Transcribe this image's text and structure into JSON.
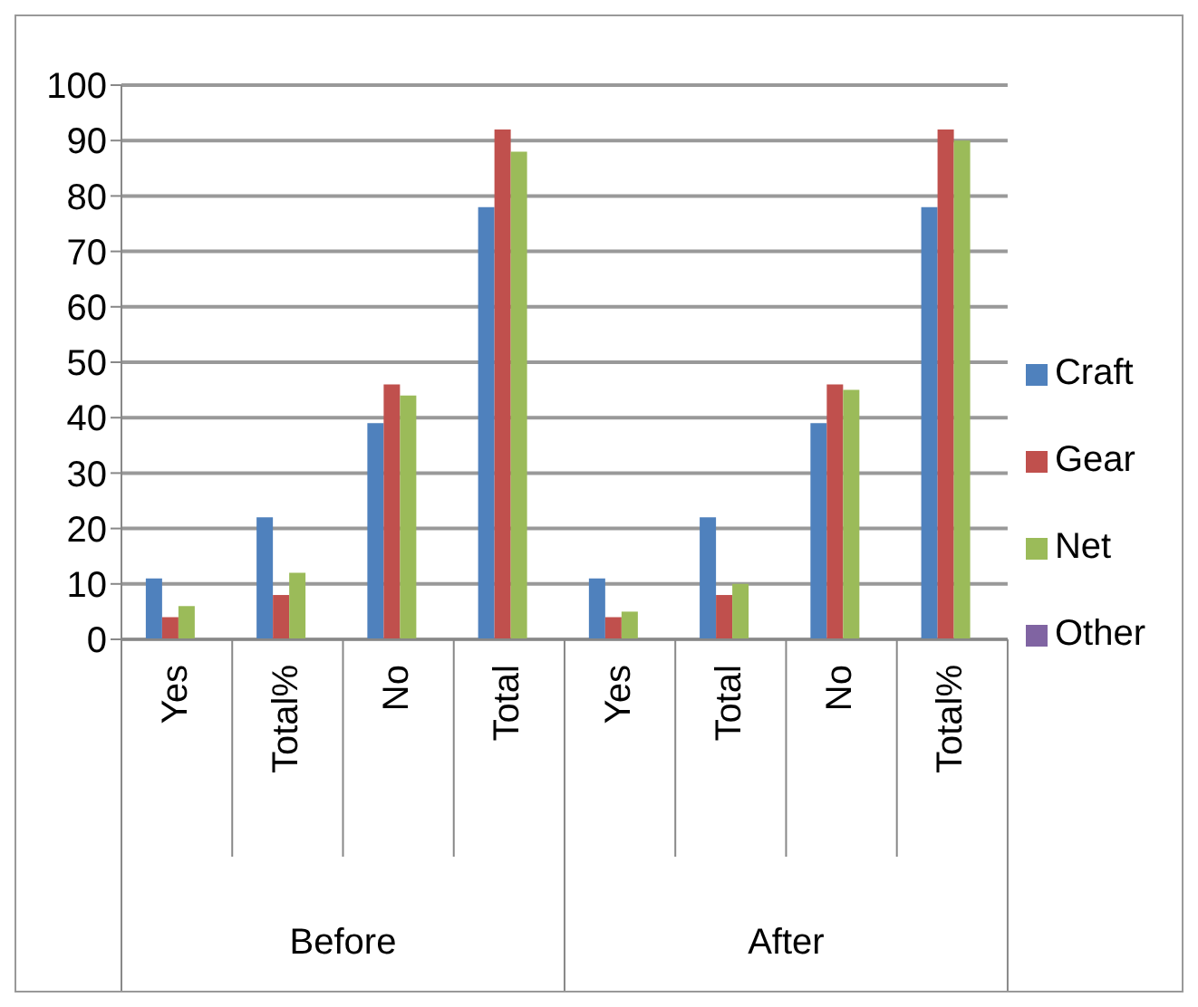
{
  "chart_data": {
    "type": "bar",
    "categories": [
      "Yes",
      "Total%",
      "No",
      "Total",
      "Yes",
      "Total",
      "No",
      "Total%"
    ],
    "annotations": [
      "Before",
      "After"
    ],
    "series": [
      {
        "name": "Craft",
        "color": "#4f81bd",
        "values": [
          11,
          22,
          39,
          78,
          11,
          22,
          39,
          78
        ]
      },
      {
        "name": "Gear",
        "color": "#c0504d",
        "values": [
          4,
          8,
          46,
          92,
          4,
          8,
          46,
          92
        ]
      },
      {
        "name": "Net",
        "color": "#9bbb59",
        "values": [
          6,
          12,
          44,
          88,
          5,
          10,
          45,
          90
        ]
      },
      {
        "name": "Other",
        "color": "#8064a2",
        "values": [
          null,
          null,
          null,
          null,
          null,
          null,
          null,
          null
        ]
      }
    ],
    "ylim": [
      0,
      100
    ],
    "yticks": [
      0,
      10,
      20,
      30,
      40,
      50,
      60,
      70,
      80,
      90,
      100
    ],
    "grid": "y",
    "legend": "right"
  }
}
